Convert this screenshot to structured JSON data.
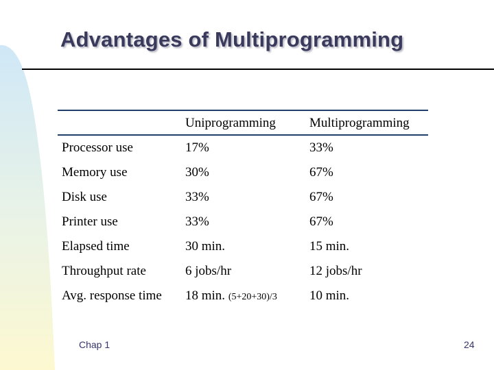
{
  "slide": {
    "title": "Advantages of Multiprogramming",
    "table": {
      "headers": [
        "",
        "Uniprogramming",
        "Multiprogramming"
      ],
      "rows": [
        {
          "label": "Processor use",
          "uni": "17%",
          "multi": "33%"
        },
        {
          "label": "Memory use",
          "uni": "30%",
          "multi": "67%"
        },
        {
          "label": "Disk use",
          "uni": "33%",
          "multi": "67%"
        },
        {
          "label": "Printer use",
          "uni": "33%",
          "multi": "67%"
        },
        {
          "label": "Elapsed time",
          "uni": "30 min.",
          "multi": "15 min."
        },
        {
          "label": "Throughput rate",
          "uni": "6 jobs/hr",
          "multi": "12 jobs/hr"
        },
        {
          "label": "Avg. response time",
          "uni": "18 min.",
          "uni_note": "(5+20+30)/3",
          "multi": "10 min."
        }
      ]
    },
    "footer": {
      "left": "Chap 1",
      "page_number": "24"
    }
  }
}
